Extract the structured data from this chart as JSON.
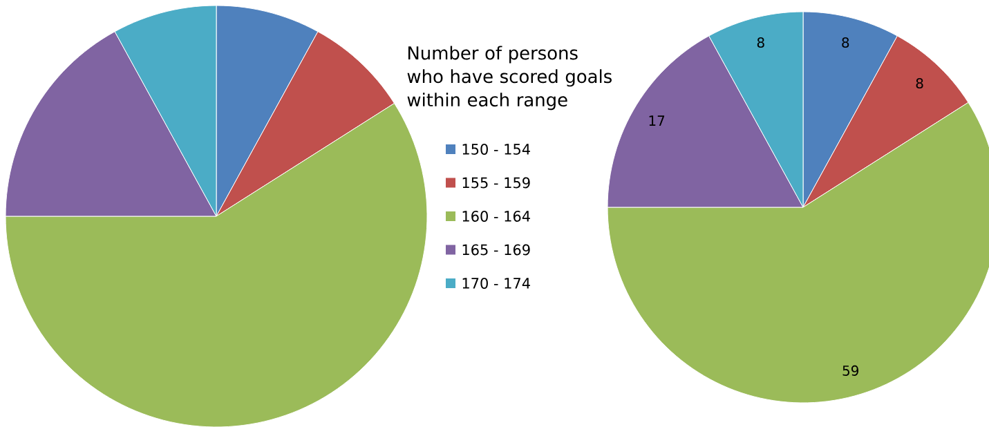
{
  "chart_data": [
    {
      "type": "pie",
      "title": "Number of persons who have scored goals within each range",
      "categories": [
        "150 - 154",
        "155 - 159",
        "160 - 164",
        "165 - 169",
        "170 - 174"
      ],
      "values": [
        8,
        8,
        59,
        17,
        8
      ],
      "colors": [
        "#4f81bd",
        "#c0504d",
        "#9bbb59",
        "#8064a2",
        "#4bacc6"
      ],
      "legend": "right"
    },
    {
      "type": "pie",
      "categories": [
        null,
        null,
        null,
        null,
        null
      ],
      "values": [
        8,
        8,
        59,
        17,
        8
      ],
      "colors": [
        "#4f81bd",
        "#c0504d",
        "#9bbb59",
        "#8064a2",
        "#4bacc6"
      ],
      "data_labels": true
    }
  ]
}
